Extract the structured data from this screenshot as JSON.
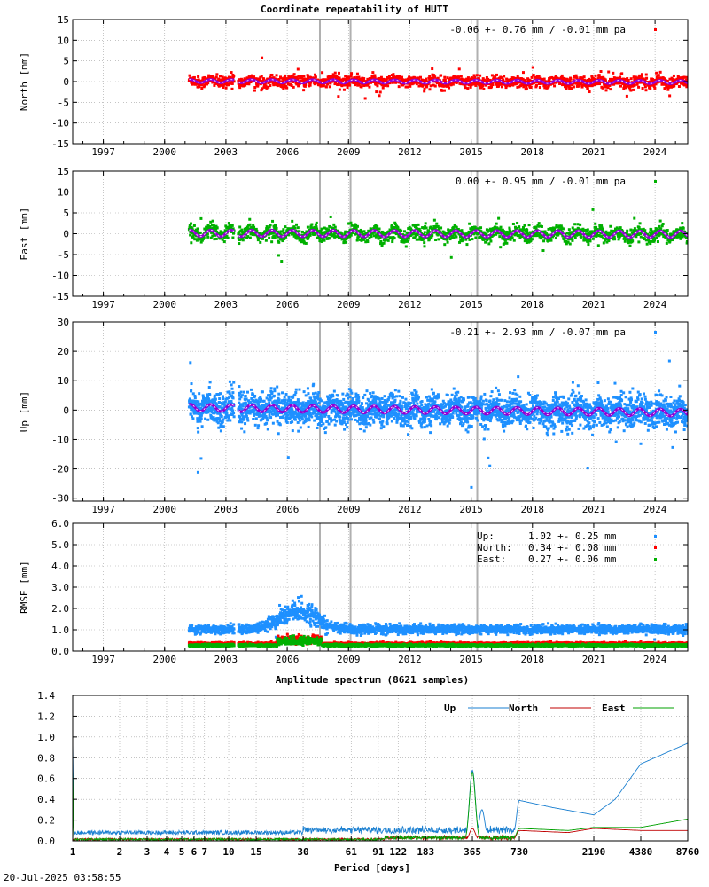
{
  "footer": {
    "timestamp": "20-Jul-2025 03:58:55"
  },
  "colors": {
    "north": "#ff0000",
    "east": "#00b000",
    "up": "#1e90ff",
    "fit": "#9400d3",
    "fit_highlight": "#ffffff",
    "event_line": "#b0b0b0",
    "spec_north": "#c00000",
    "spec_east": "#00a000",
    "spec_up": "#1a7fd0"
  },
  "chart_data": [
    {
      "id": "north",
      "type": "scatter",
      "title": "Coordinate repeatability of HUTT",
      "ylabel": "North [mm]",
      "xlim": [
        1995.5,
        2025.6
      ],
      "ylim": [
        -15,
        15
      ],
      "xticks": [
        "1997",
        "2000",
        "2003",
        "2006",
        "2009",
        "2012",
        "2015",
        "2018",
        "2021",
        "2024"
      ],
      "yticks": [
        "15",
        "10",
        "5",
        "0",
        "-5",
        "-10",
        "-15"
      ],
      "legend": "-0.06 +- 0.76 mm / -0.01 mm pa",
      "legend_position": "top-right",
      "grid": true,
      "data_start": 2001.2,
      "data_gap": [
        2003.4,
        2003.6
      ],
      "data_end": 2025.6,
      "scatter_sigma": 0.76,
      "annual_amplitude": 0.4,
      "trend_mm_per_yr": -0.01,
      "event_lines": [
        2007.6,
        2009.1,
        2015.3
      ]
    },
    {
      "id": "east",
      "type": "scatter",
      "ylabel": "East [mm]",
      "xlim": [
        1995.5,
        2025.6
      ],
      "ylim": [
        -15,
        15
      ],
      "xticks": [
        "1997",
        "2000",
        "2003",
        "2006",
        "2009",
        "2012",
        "2015",
        "2018",
        "2021",
        "2024"
      ],
      "yticks": [
        "15",
        "10",
        "5",
        "0",
        "-5",
        "-10",
        "-15"
      ],
      "legend": "0.00 +- 0.95 mm / -0.01 mm pa",
      "legend_position": "top-right",
      "grid": true,
      "data_start": 2001.2,
      "data_gap": [
        2003.4,
        2003.6
      ],
      "data_end": 2025.6,
      "scatter_sigma": 0.95,
      "annual_amplitude": 0.8,
      "trend_mm_per_yr": -0.01,
      "event_lines": [
        2007.6,
        2009.1,
        2015.3
      ]
    },
    {
      "id": "up",
      "type": "scatter",
      "ylabel": "Up [mm]",
      "xlim": [
        1995.5,
        2025.6
      ],
      "ylim": [
        -31,
        30
      ],
      "xticks": [
        "1997",
        "2000",
        "2003",
        "2006",
        "2009",
        "2012",
        "2015",
        "2018",
        "2021",
        "2024"
      ],
      "yticks": [
        "30",
        "20",
        "10",
        "0",
        "-10",
        "-20",
        "-30"
      ],
      "legend": "-0.21 +- 2.93 mm / -0.07 mm pa",
      "legend_position": "top-right",
      "grid": true,
      "data_start": 2001.2,
      "data_gap": [
        2003.4,
        2003.6
      ],
      "data_end": 2025.6,
      "scatter_sigma": 2.93,
      "annual_amplitude": 1.2,
      "trend_mm_per_yr": -0.07,
      "event_lines": [
        2007.6,
        2009.1,
        2015.3
      ]
    },
    {
      "id": "rmse",
      "type": "scatter",
      "ylabel": "RMSE [mm]",
      "xlim": [
        1995.5,
        2025.6
      ],
      "ylim": [
        0,
        6
      ],
      "xticks": [
        "1997",
        "2000",
        "2003",
        "2006",
        "2009",
        "2012",
        "2015",
        "2018",
        "2021",
        "2024"
      ],
      "yticks": [
        "6.0",
        "5.0",
        "4.0",
        "3.0",
        "2.0",
        "1.0",
        "0.0"
      ],
      "legend_position": "top-right",
      "grid": true,
      "data_start": 2001.2,
      "data_gap": [
        2003.4,
        2003.6
      ],
      "data_end": 2025.6,
      "event_lines": [
        2007.6,
        2009.1,
        2015.3
      ],
      "series": [
        {
          "name": "Up:",
          "label": "1.02 +- 0.25 mm",
          "mean": 1.02,
          "sd": 0.25,
          "color_key": "up"
        },
        {
          "name": "North:",
          "label": "0.34 +- 0.08 mm",
          "mean": 0.34,
          "sd": 0.08,
          "color_key": "north"
        },
        {
          "name": "East:",
          "label": "0.27 +- 0.06 mm",
          "mean": 0.27,
          "sd": 0.06,
          "color_key": "east"
        }
      ],
      "up_bump": {
        "center": 2006.5,
        "width": 1.2,
        "height": 0.9
      }
    },
    {
      "id": "spectrum",
      "type": "line",
      "title": "Amplitude spectrum (8621 samples)",
      "xlabel": "Period [days]",
      "x_scale": "log",
      "xlim": [
        1,
        8760
      ],
      "ylim": [
        0,
        1.4
      ],
      "xticks": [
        "1",
        "2",
        "3",
        "4",
        "5",
        "6",
        "7",
        "10",
        "15",
        "30",
        "61",
        "91",
        "122",
        "183",
        "365",
        "730",
        "2190",
        "4380",
        "8760"
      ],
      "xtick_values": [
        1,
        2,
        3,
        4,
        5,
        6,
        7,
        10,
        15,
        30,
        61,
        91,
        122,
        183,
        365,
        730,
        2190,
        4380,
        8760
      ],
      "yticks": [
        "1.4",
        "1.2",
        "1.0",
        "0.8",
        "0.6",
        "0.4",
        "0.2",
        "0.0"
      ],
      "grid": true,
      "legend_position": "top-right",
      "series": [
        {
          "name": "Up",
          "color_key": "spec_up",
          "peaks": [
            [
              1,
              0.95
            ],
            [
              365,
              0.68
            ],
            [
              420,
              0.3
            ],
            [
              730,
              0.39
            ],
            [
              1200,
              0.32
            ],
            [
              2190,
              0.25
            ],
            [
              3000,
              0.4
            ],
            [
              4380,
              0.74
            ],
            [
              8760,
              0.94
            ]
          ]
        },
        {
          "name": "North",
          "color_key": "spec_north",
          "peaks": [
            [
              365,
              0.12
            ],
            [
              730,
              0.1
            ],
            [
              1500,
              0.08
            ],
            [
              2190,
              0.12
            ],
            [
              4380,
              0.1
            ],
            [
              8760,
              0.1
            ]
          ]
        },
        {
          "name": "East",
          "color_key": "spec_east",
          "peaks": [
            [
              1,
              0.7
            ],
            [
              365,
              0.66
            ],
            [
              730,
              0.12
            ],
            [
              1500,
              0.1
            ],
            [
              2190,
              0.13
            ],
            [
              4380,
              0.13
            ],
            [
              8760,
              0.21
            ]
          ]
        }
      ]
    }
  ]
}
